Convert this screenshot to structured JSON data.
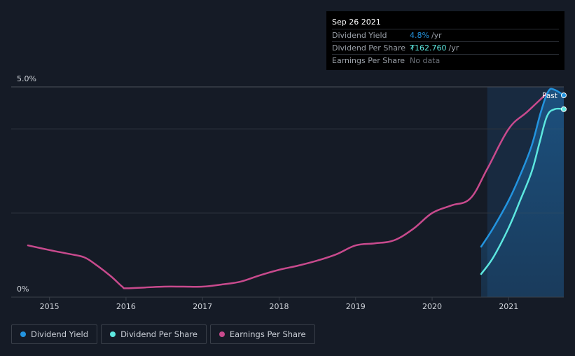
{
  "tooltip": {
    "date": "Sep 26 2021",
    "rows": [
      {
        "label": "Dividend Yield",
        "value": "4.8%",
        "unit": "/yr",
        "color": "#2394df"
      },
      {
        "label": "Dividend Per Share",
        "value": "₮162.760",
        "unit": "/yr",
        "color": "#5de8e0"
      },
      {
        "label": "Earnings Per Share",
        "value": "No data",
        "unit": "",
        "color": "#6b7078"
      }
    ]
  },
  "past_label": "Past",
  "legend": [
    {
      "label": "Dividend Yield",
      "color": "#2394df"
    },
    {
      "label": "Dividend Per Share",
      "color": "#5de8e0"
    },
    {
      "label": "Earnings Per Share",
      "color": "#c84a8d"
    }
  ],
  "chart_data": {
    "type": "line",
    "title": "",
    "xlabel": "",
    "ylabel": "",
    "x_range": [
      2014.5,
      2021.72
    ],
    "ylim": [
      0,
      5.0
    ],
    "y_tick_labels": [
      {
        "value": 0,
        "label": "0%"
      },
      {
        "value": 5.0,
        "label": "5.0%"
      }
    ],
    "gridlines": [
      2.0,
      4.0,
      5.0
    ],
    "x_ticks": [
      2015,
      2016,
      2017,
      2018,
      2019,
      2020,
      2021
    ],
    "highlight_from": 2020.72,
    "series": [
      {
        "name": "Earnings Per Share",
        "color": "#c84a8d",
        "points": [
          [
            2014.72,
            1.23
          ],
          [
            2015.0,
            1.12
          ],
          [
            2015.25,
            1.03
          ],
          [
            2015.45,
            0.95
          ],
          [
            2015.6,
            0.78
          ],
          [
            2015.8,
            0.5
          ],
          [
            2015.95,
            0.25
          ],
          [
            2016.0,
            0.21
          ],
          [
            2016.25,
            0.23
          ],
          [
            2016.5,
            0.25
          ],
          [
            2016.75,
            0.25
          ],
          [
            2017.0,
            0.25
          ],
          [
            2017.25,
            0.3
          ],
          [
            2017.5,
            0.37
          ],
          [
            2017.75,
            0.52
          ],
          [
            2018.0,
            0.65
          ],
          [
            2018.25,
            0.75
          ],
          [
            2018.5,
            0.87
          ],
          [
            2018.75,
            1.02
          ],
          [
            2019.0,
            1.23
          ],
          [
            2019.25,
            1.28
          ],
          [
            2019.5,
            1.35
          ],
          [
            2019.75,
            1.62
          ],
          [
            2020.0,
            2.0
          ],
          [
            2020.25,
            2.18
          ],
          [
            2020.5,
            2.35
          ],
          [
            2020.72,
            3.05
          ],
          [
            2021.0,
            4.0
          ],
          [
            2021.25,
            4.42
          ],
          [
            2021.5,
            4.85
          ]
        ]
      },
      {
        "name": "Dividend Yield",
        "color": "#2394df",
        "points": [
          [
            2020.64,
            1.2
          ],
          [
            2020.8,
            1.65
          ],
          [
            2021.0,
            2.3
          ],
          [
            2021.15,
            2.9
          ],
          [
            2021.3,
            3.6
          ],
          [
            2021.42,
            4.4
          ],
          [
            2021.52,
            4.9
          ],
          [
            2021.6,
            4.93
          ],
          [
            2021.72,
            4.8
          ]
        ]
      },
      {
        "name": "Dividend Per Share",
        "color": "#5de8e0",
        "points": [
          [
            2020.64,
            0.55
          ],
          [
            2020.8,
            0.95
          ],
          [
            2021.0,
            1.65
          ],
          [
            2021.15,
            2.3
          ],
          [
            2021.3,
            2.98
          ],
          [
            2021.4,
            3.65
          ],
          [
            2021.5,
            4.3
          ],
          [
            2021.6,
            4.47
          ],
          [
            2021.72,
            4.47
          ]
        ]
      }
    ]
  }
}
